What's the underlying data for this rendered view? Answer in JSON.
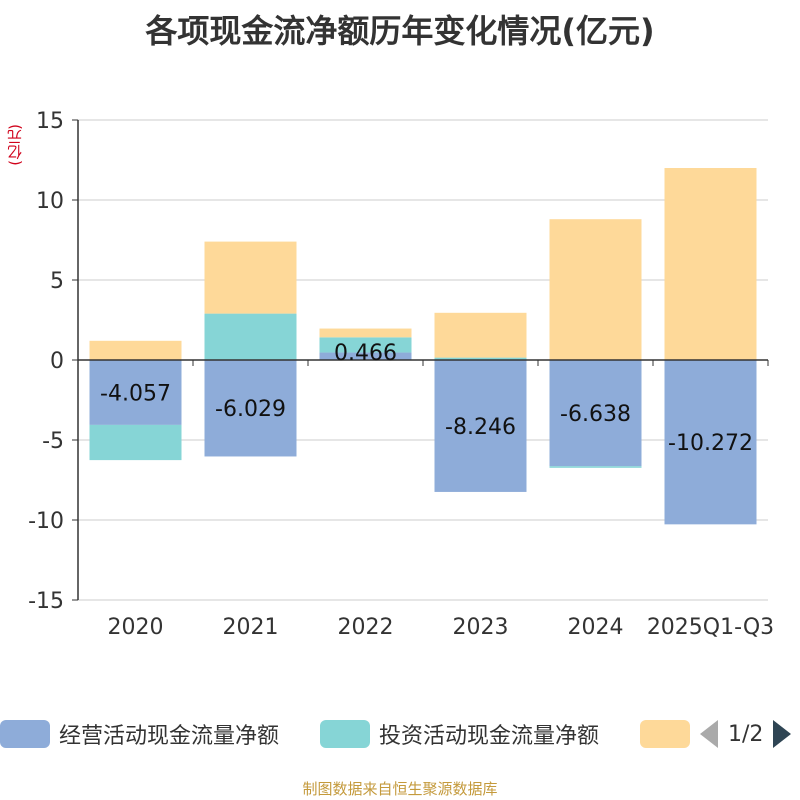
{
  "chart_data": {
    "type": "bar",
    "stacked": true,
    "title": "各项现金流净额历年变化情况(亿元)",
    "ylabel": "(亿元)",
    "ylim": [
      -15,
      15
    ],
    "yticks": [
      15,
      10,
      5,
      0,
      -5,
      -10,
      -15
    ],
    "categories": [
      "2020",
      "2021",
      "2022",
      "2023",
      "2024",
      "2025Q1-Q3"
    ],
    "series": [
      {
        "name": "经营活动现金流量净额",
        "color": "#8eacd9",
        "values": [
          -4.057,
          -6.029,
          0.466,
          -8.246,
          -6.638,
          -10.272
        ],
        "labels": [
          "-4.057",
          "-6.029",
          "0.466",
          "-8.246",
          "-6.638",
          "-10.272"
        ]
      },
      {
        "name": "投资活动现金流量净额",
        "color": "#86d5d6",
        "values": [
          -2.2,
          2.9,
          0.95,
          0.15,
          -0.1,
          0.0
        ]
      },
      {
        "name": "",
        "color": "#fed999",
        "values": [
          1.2,
          4.5,
          0.55,
          2.8,
          8.8,
          12.0
        ]
      }
    ],
    "legend": {
      "position": "bottom",
      "page": "1/2"
    }
  },
  "footer": "制图数据来自恒生聚源数据库"
}
